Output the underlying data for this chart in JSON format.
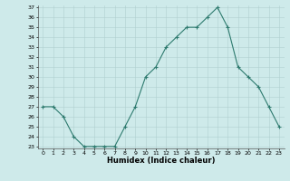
{
  "x": [
    0,
    1,
    2,
    3,
    4,
    5,
    6,
    7,
    8,
    9,
    10,
    11,
    12,
    13,
    14,
    15,
    16,
    17,
    18,
    19,
    20,
    21,
    22,
    23
  ],
  "y": [
    27,
    27,
    26,
    24,
    23,
    23,
    23,
    23,
    25,
    27,
    30,
    31,
    33,
    34,
    35,
    35,
    36,
    37,
    35,
    31,
    30,
    29,
    27,
    25
  ],
  "ylim": [
    23,
    37
  ],
  "yticks": [
    23,
    24,
    25,
    26,
    27,
    28,
    29,
    30,
    31,
    32,
    33,
    34,
    35,
    36,
    37
  ],
  "xtick_labels": [
    "0",
    "1",
    "2",
    "3",
    "4",
    "5",
    "6",
    "7",
    "8",
    "9",
    "10",
    "11",
    "12",
    "13",
    "14",
    "15",
    "16",
    "17",
    "18",
    "19",
    "20",
    "21",
    "22",
    "23"
  ],
  "xlabel": "Humidex (Indice chaleur)",
  "line_color": "#2d7a6e",
  "marker_color": "#2d7a6e",
  "bg_color": "#ceeaea",
  "grid_color": "#b0d0d0",
  "title": ""
}
